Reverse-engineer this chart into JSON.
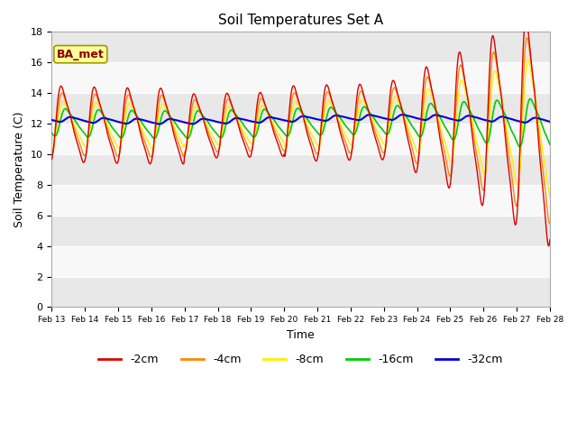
{
  "title": "Soil Temperatures Set A",
  "xlabel": "Time",
  "ylabel": "Soil Temperature (C)",
  "annotation": "BA_met",
  "ylim": [
    0,
    18
  ],
  "yticks": [
    0,
    2,
    4,
    6,
    8,
    10,
    12,
    14,
    16,
    18
  ],
  "x_labels": [
    "Feb 13",
    "Feb 14",
    "Feb 15",
    "Feb 16",
    "Feb 17",
    "Feb 18",
    "Feb 19",
    "Feb 20",
    "Feb 21",
    "Feb 22",
    "Feb 23",
    "Feb 24",
    "Feb 25",
    "Feb 26",
    "Feb 27",
    "Feb 28"
  ],
  "colors": {
    "-2cm": "#dd0000",
    "-4cm": "#ff8800",
    "-8cm": "#ffee00",
    "-16cm": "#00cc00",
    "-32cm": "#0000dd"
  },
  "legend_order": [
    "-2cm",
    "-4cm",
    "-8cm",
    "-16cm",
    "-32cm"
  ],
  "background_bands": [
    "#e8e8e8",
    "#f8f8f8"
  ],
  "background_fig": "#ffffff",
  "grid_line_color": "#ffffff",
  "n_days": 15,
  "pts_per_day": 48
}
